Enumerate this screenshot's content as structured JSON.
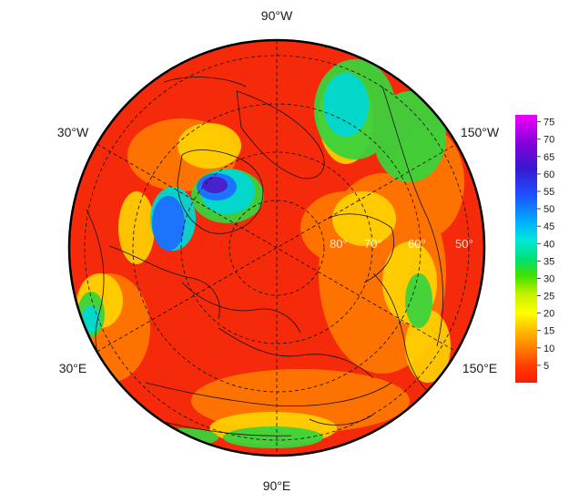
{
  "longitude_labels": {
    "top": "90°W",
    "bottom": "90°E",
    "upper_left": "30°W",
    "upper_right": "150°W",
    "lower_left": "30°E",
    "lower_right": "150°E"
  },
  "latitude_labels": [
    "80°",
    "70°",
    "60°",
    "50°"
  ],
  "colorbar": {
    "ticks": [
      "5",
      "10",
      "15",
      "20",
      "25",
      "30",
      "35",
      "40",
      "45",
      "50",
      "55",
      "60",
      "65",
      "70",
      "75"
    ],
    "min": 0,
    "max": 77,
    "colors": [
      "#ff1a00",
      "#ff4a00",
      "#ff8c00",
      "#ffd000",
      "#ffff00",
      "#c8f000",
      "#32e000",
      "#00e060",
      "#00e0e0",
      "#00a0ff",
      "#1e4cff",
      "#3a1ad0",
      "#8000d0",
      "#e000ff"
    ]
  },
  "field_colors": {
    "background_red": "#f52a0a",
    "orange": "#ff7a00",
    "yellow": "#ffd400",
    "green": "#3cd23c",
    "cyan": "#00d7d2",
    "blue": "#1e6eff",
    "purple": "#4b1ec8"
  }
}
